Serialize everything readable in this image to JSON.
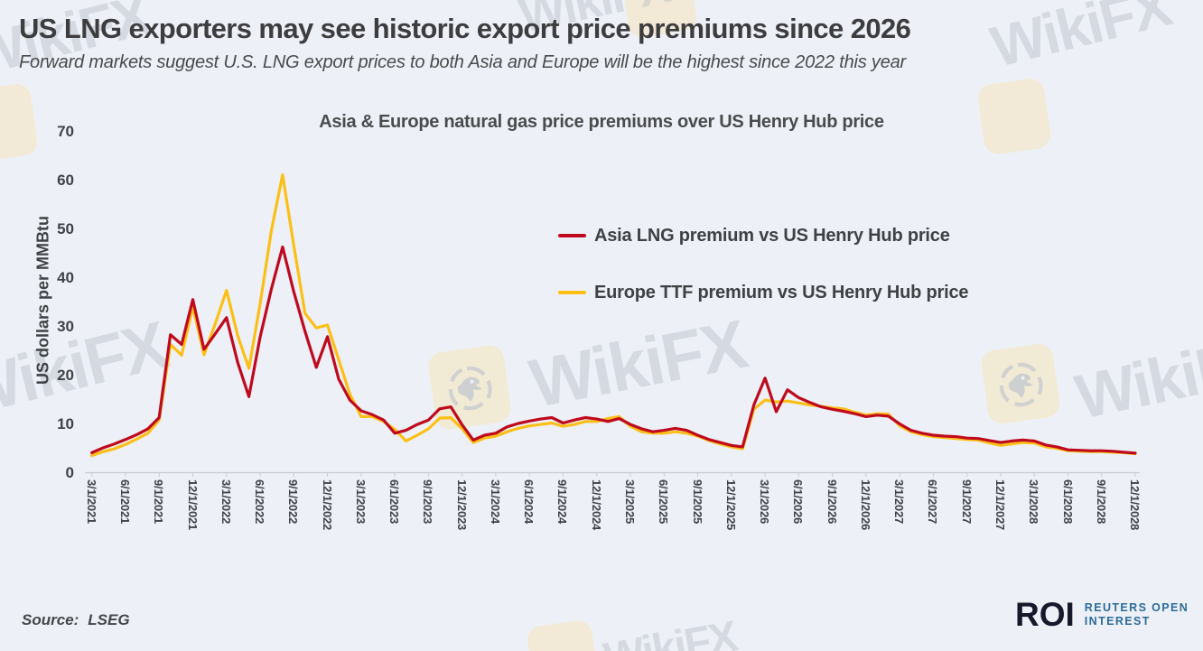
{
  "page": {
    "title": "US LNG exporters may see historic export price premiums since 2026",
    "subtitle": "Forward markets suggest U.S. LNG export prices to both Asia and Europe will be the highest since 2022 this year"
  },
  "source": {
    "label": "Source:",
    "value": "LSEG"
  },
  "branding": {
    "logo": "ROI",
    "line1": "REUTERS OPEN",
    "line2": "INTEREST",
    "logo_color": "#17182b",
    "text_color": "#2d6a9b"
  },
  "watermark": {
    "text": "WikiFX"
  },
  "chart_data": {
    "type": "line",
    "title": "Asia & Europe natural gas price premiums over US Henry Hub price",
    "xlabel": "",
    "ylabel": "US dollars per MMBtu",
    "ylim": [
      0,
      70
    ],
    "y_ticks": [
      0,
      10,
      20,
      30,
      40,
      50,
      60,
      70
    ],
    "grid": false,
    "legend_position": "upper middle",
    "x_unit": "monthly",
    "x_start": "3/1/2021",
    "x_end": "12/1/2028",
    "x_ticks": [
      "3/1/2021",
      "6/1/2021",
      "9/1/2021",
      "12/1/2021",
      "3/1/2022",
      "6/1/2022",
      "9/1/2022",
      "12/1/2022",
      "3/1/2023",
      "6/1/2023",
      "9/1/2023",
      "12/1/2023",
      "3/1/2024",
      "6/1/2024",
      "9/1/2024",
      "12/1/2024",
      "3/1/2025",
      "6/1/2025",
      "9/1/2025",
      "12/1/2025",
      "3/1/2026",
      "6/1/2026",
      "9/1/2026",
      "12/1/2026",
      "3/1/2027",
      "6/1/2027",
      "9/1/2027",
      "12/1/2027",
      "3/1/2028",
      "6/1/2028",
      "9/1/2028",
      "12/1/2028"
    ],
    "series": [
      {
        "name": "Asia LNG premium vs US Henry Hub price",
        "color": "#bf0a1e",
        "values": [
          4.0,
          5.0,
          5.8,
          6.7,
          7.7,
          8.9,
          11.2,
          28.2,
          26.2,
          35.4,
          25.2,
          28.4,
          31.7,
          22.5,
          15.5,
          27.7,
          37.6,
          46.2,
          37.0,
          28.9,
          21.5,
          27.8,
          19.1,
          14.8,
          12.6,
          11.8,
          10.7,
          8.0,
          8.6,
          9.8,
          10.7,
          13.0,
          13.4,
          9.7,
          6.6,
          7.6,
          8.0,
          9.3,
          10.0,
          10.5,
          10.9,
          11.2,
          10.1,
          10.7,
          11.2,
          10.9,
          10.4,
          11.0,
          9.8,
          8.9,
          8.3,
          8.6,
          9.0,
          8.6,
          7.6,
          6.7,
          6.1,
          5.5,
          5.2,
          13.8,
          19.3,
          12.4,
          16.9,
          15.3,
          14.3,
          13.4,
          12.9,
          12.5,
          12.0,
          11.4,
          11.7,
          11.5,
          9.9,
          8.6,
          8.0,
          7.6,
          7.4,
          7.3,
          7.0,
          6.9,
          6.5,
          6.1,
          6.4,
          6.6,
          6.4,
          5.6,
          5.2,
          4.6,
          4.5,
          4.4,
          4.4,
          4.3,
          4.1,
          3.9
        ]
      },
      {
        "name": "Europe TTF premium vs US Henry Hub price",
        "color": "#fcbf17",
        "values": [
          3.4,
          4.2,
          4.8,
          5.7,
          6.8,
          8.0,
          10.7,
          26.2,
          24.0,
          33.9,
          24.1,
          30.5,
          37.3,
          28.0,
          21.3,
          34.5,
          49.6,
          61.0,
          46.5,
          32.6,
          29.6,
          30.2,
          23.1,
          16.0,
          11.4,
          11.4,
          10.4,
          8.8,
          6.4,
          7.6,
          8.9,
          11.1,
          11.2,
          8.9,
          6.1,
          7.0,
          7.4,
          8.3,
          9.0,
          9.5,
          9.8,
          10.1,
          9.4,
          9.8,
          10.4,
          10.4,
          11.0,
          11.4,
          9.4,
          8.3,
          8.0,
          8.0,
          8.3,
          8.0,
          7.4,
          6.5,
          5.8,
          5.2,
          4.8,
          12.9,
          14.8,
          14.4,
          14.6,
          14.2,
          13.8,
          13.5,
          13.2,
          13.0,
          12.3,
          11.7,
          12.0,
          11.9,
          9.5,
          8.3,
          7.7,
          7.3,
          7.1,
          6.9,
          6.7,
          6.6,
          6.0,
          5.5,
          5.8,
          6.1,
          6.0,
          5.2,
          4.9,
          4.4,
          4.3,
          4.2,
          4.2,
          4.1,
          4.0,
          3.8
        ]
      }
    ]
  }
}
